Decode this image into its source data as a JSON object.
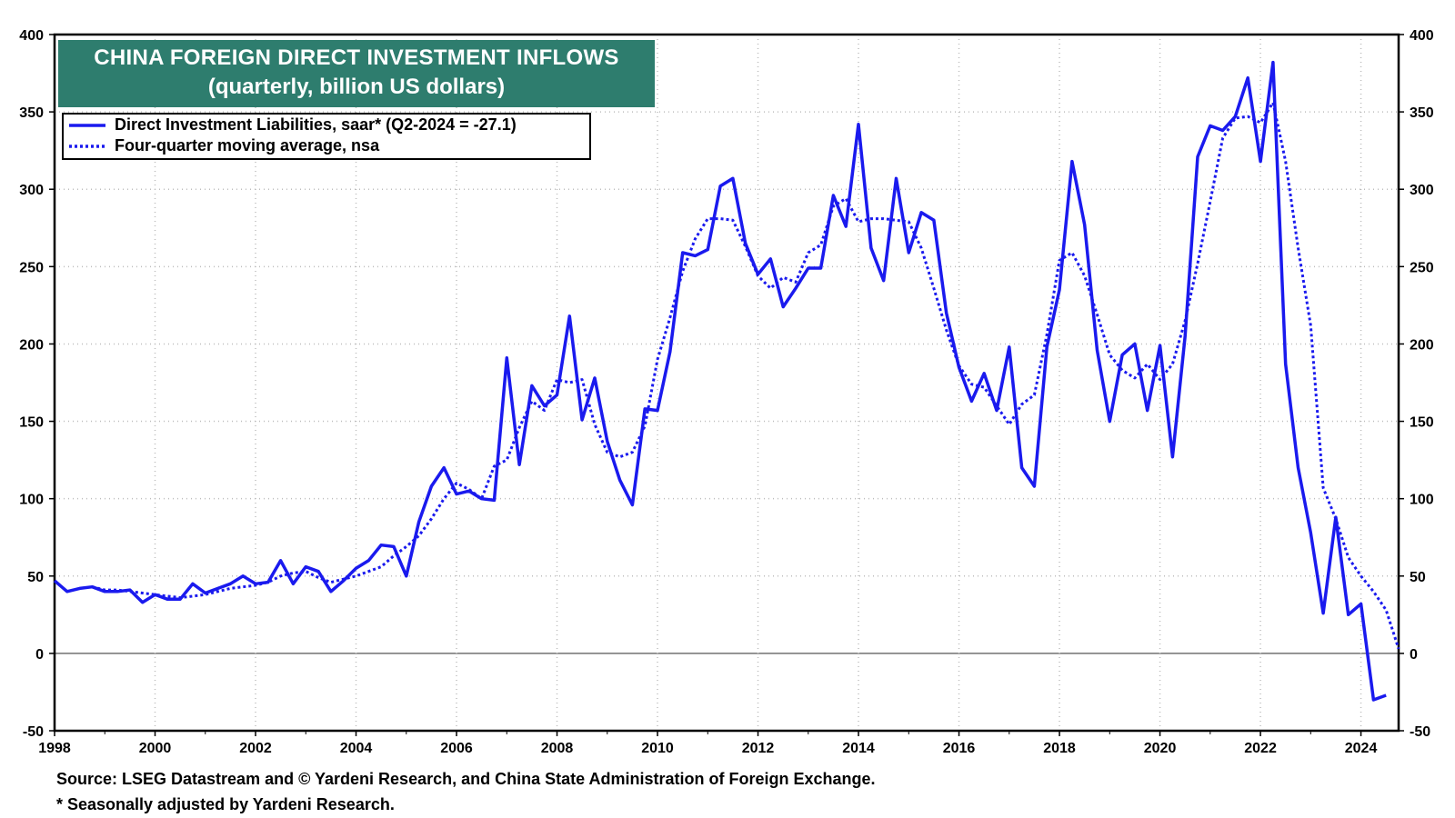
{
  "title_line1": "CHINA FOREIGN DIRECT INVESTMENT INFLOWS",
  "title_line2": "(quarterly, billion US dollars)",
  "source": "Source: LSEG Datastream and © Yardeni Research, and China State Administration of Foreign Exchange.",
  "footnote": "* Seasonally adjusted by Yardeni Research.",
  "colors": {
    "series": "#1a1aee",
    "title_bg": "#2e7d6e",
    "grid": "#bdbdbd"
  },
  "chart_data": {
    "type": "line",
    "xlim": [
      1998,
      2024.75
    ],
    "ylim": [
      -50,
      400
    ],
    "x_ticks": [
      "1998",
      "2000",
      "2002",
      "2004",
      "2006",
      "2008",
      "2010",
      "2012",
      "2014",
      "2016",
      "2018",
      "2020",
      "2022",
      "2024"
    ],
    "y_ticks": [
      400,
      350,
      300,
      250,
      200,
      150,
      100,
      50,
      0,
      -50
    ],
    "grid": true,
    "legend_position": "top-left",
    "series": [
      {
        "name": "Direct Investment Liabilities, saar* (Q2-2024 = -27.1)",
        "style": "solid",
        "x_start": 1998.0,
        "x_step": 0.25,
        "values": [
          47,
          40,
          42,
          43,
          40,
          40,
          41,
          33,
          38,
          35,
          35,
          45,
          39,
          42,
          45,
          50,
          45,
          46,
          60,
          45,
          56,
          53,
          40,
          47,
          55,
          60,
          70,
          69,
          50,
          85,
          108,
          120,
          103,
          105,
          100,
          99,
          191,
          122,
          173,
          160,
          167,
          218,
          151,
          178,
          137,
          112,
          96,
          158,
          157,
          195,
          259,
          257,
          261,
          302,
          307,
          265,
          245,
          255,
          224,
          236,
          249,
          249,
          296,
          276,
          342,
          262,
          241,
          307,
          259,
          285,
          280,
          220,
          185,
          163,
          181,
          157,
          198,
          120,
          108,
          198,
          235,
          318,
          277,
          196,
          150,
          193,
          200,
          157,
          199,
          127,
          205,
          321,
          341,
          338,
          347,
          372,
          318,
          382,
          187,
          120,
          78,
          26,
          88,
          25,
          32,
          -30,
          -27.1
        ]
      },
      {
        "name": "Four-quarter moving average, nsa",
        "style": "dotted",
        "x_start": 1998.75,
        "x_step": 0.25,
        "values": [
          43,
          41,
          41,
          40,
          39,
          38,
          37,
          36,
          37,
          38,
          40,
          42,
          43,
          44,
          46,
          50,
          52,
          53,
          49,
          46,
          48,
          50,
          53,
          56,
          63,
          69,
          76,
          87,
          100,
          110,
          106,
          100,
          121,
          125,
          146,
          163,
          157,
          177,
          175,
          177,
          148,
          130,
          127,
          130,
          147,
          190,
          217,
          247,
          268,
          281,
          281,
          280,
          263,
          244,
          236,
          243,
          240,
          259,
          264,
          289,
          294,
          279,
          281,
          281,
          280,
          279,
          262,
          236,
          209,
          186,
          174,
          172,
          160,
          148,
          161,
          167,
          206,
          254,
          259,
          244,
          219,
          193,
          183,
          178,
          187,
          177,
          187,
          215,
          252,
          292,
          333,
          346,
          347,
          343,
          356,
          318,
          262,
          212,
          107,
          87,
          62,
          50,
          40,
          28,
          3
        ]
      }
    ]
  }
}
